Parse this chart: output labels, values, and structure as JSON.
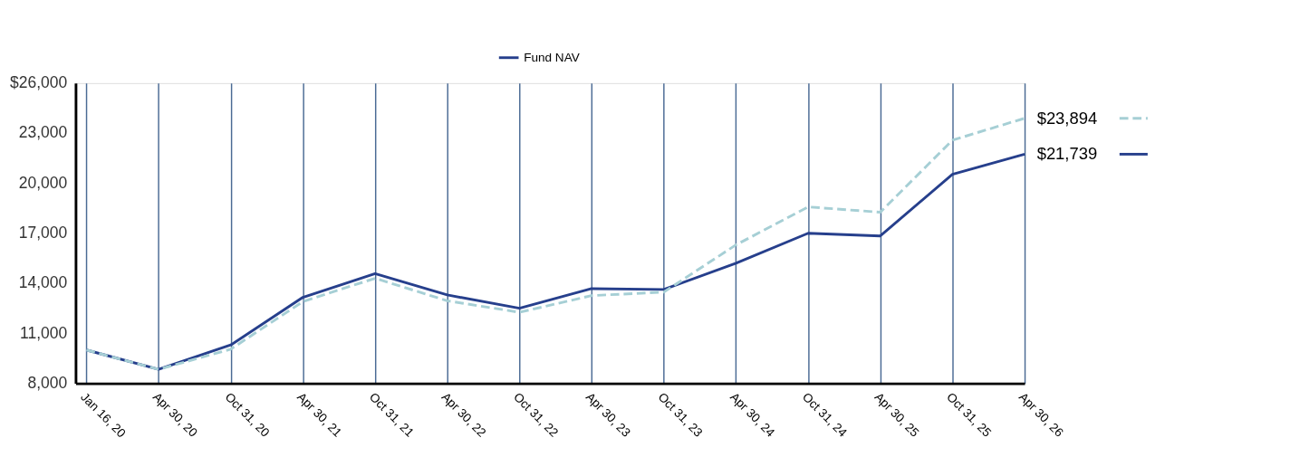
{
  "chart_data": {
    "type": "line",
    "categories": [
      "Jan 16, 20",
      "Apr 30, 20",
      "Oct 31, 20",
      "Apr 30, 21",
      "Oct 31, 21",
      "Apr 30, 22",
      "Oct 31, 22",
      "Apr 30, 23",
      "Oct 31, 23",
      "Apr 30, 24",
      "Oct 31, 24",
      "Apr 30, 25",
      "Oct 31, 25",
      "Apr 30, 26"
    ],
    "series": [
      {
        "name": "Fund NAV",
        "color": "#263f8c",
        "line_style": "solid",
        "values": [
          10000,
          8840,
          10300,
          13160,
          14580,
          13300,
          12500,
          13680,
          13630,
          15200,
          17000,
          16840,
          20530,
          21739
        ],
        "value_labels": [
          null,
          null,
          null,
          null,
          null,
          null,
          null,
          null,
          null,
          null,
          null,
          null,
          null,
          "$21,739"
        ]
      },
      {
        "color": "#a6cfd5",
        "line_style": "dashed",
        "values": [
          10000,
          8840,
          10050,
          12900,
          14300,
          12950,
          12260,
          13260,
          13470,
          16300,
          18580,
          18260,
          22580,
          23894
        ],
        "value_labels": [
          null,
          null,
          null,
          null,
          null,
          null,
          null,
          null,
          null,
          null,
          null,
          null,
          null,
          "$23,894"
        ]
      }
    ],
    "ylim": [
      8000,
      26000
    ],
    "yticks": [
      {
        "value": 8000,
        "label": "8,000"
      },
      {
        "value": 11000,
        "label": "11,000"
      },
      {
        "value": 14000,
        "label": "14,000"
      },
      {
        "value": 17000,
        "label": "17,000"
      },
      {
        "value": 20000,
        "label": "20,000"
      },
      {
        "value": 23000,
        "label": "23,000"
      },
      {
        "value": 26000,
        "label": "$26,000"
      }
    ],
    "grid": "x",
    "legend": "top"
  }
}
